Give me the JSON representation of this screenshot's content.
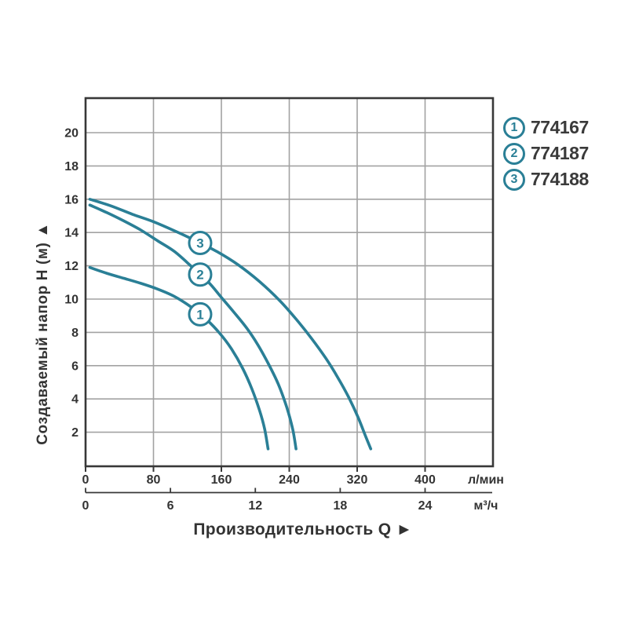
{
  "colors": {
    "curve": "#2a7f96",
    "grid": "#a2a2a2",
    "axis": "#383838",
    "text": "#333333",
    "background": "#ffffff",
    "badge_fill": "#ffffff"
  },
  "legend": {
    "items": [
      {
        "marker": "1",
        "label": "774167"
      },
      {
        "marker": "2",
        "label": "774187"
      },
      {
        "marker": "3",
        "label": "774188"
      }
    ]
  },
  "chart_data": {
    "type": "line",
    "title": "",
    "xlabel": "Производительность Q  ►",
    "ylabel": "Создаваемый напор H (м)  ▲",
    "grid": true,
    "legend_position": "outside-top-right",
    "x_axis_primary": {
      "unit": "л/мин",
      "ticks": [
        0,
        80,
        160,
        240,
        320,
        400
      ],
      "max_visible": 480
    },
    "x_axis_secondary": {
      "unit": "м³/ч",
      "ticks": [
        0,
        6,
        12,
        18,
        24
      ],
      "lmin_per_m3h": 16.6667
    },
    "y_axis": {
      "unit": "м",
      "ticks": [
        2,
        4,
        6,
        8,
        10,
        12,
        14,
        16,
        18,
        20
      ],
      "range_shown": [
        0,
        22
      ]
    },
    "series": [
      {
        "marker": "1",
        "model": "774167",
        "badge_at_lmin": 135,
        "points_lmin_vs_m": [
          [
            5,
            11.9
          ],
          [
            25,
            11.55
          ],
          [
            45,
            11.25
          ],
          [
            65,
            10.95
          ],
          [
            85,
            10.6
          ],
          [
            105,
            10.15
          ],
          [
            125,
            9.5
          ],
          [
            143,
            8.75
          ],
          [
            158,
            7.95
          ],
          [
            172,
            7.0
          ],
          [
            185,
            5.85
          ],
          [
            196,
            4.6
          ],
          [
            205,
            3.3
          ],
          [
            211,
            2.2
          ],
          [
            215,
            1.0
          ]
        ]
      },
      {
        "marker": "2",
        "model": "774187",
        "badge_at_lmin": 135,
        "points_lmin_vs_m": [
          [
            5,
            15.65
          ],
          [
            25,
            15.2
          ],
          [
            45,
            14.7
          ],
          [
            65,
            14.15
          ],
          [
            85,
            13.5
          ],
          [
            105,
            12.85
          ],
          [
            125,
            11.95
          ],
          [
            145,
            11.0
          ],
          [
            160,
            10.1
          ],
          [
            175,
            9.2
          ],
          [
            190,
            8.25
          ],
          [
            203,
            7.25
          ],
          [
            215,
            6.15
          ],
          [
            227,
            4.9
          ],
          [
            237,
            3.5
          ],
          [
            244,
            2.2
          ],
          [
            248,
            1.0
          ]
        ]
      },
      {
        "marker": "3",
        "model": "774188",
        "badge_at_lmin": 135,
        "points_lmin_vs_m": [
          [
            5,
            16.0
          ],
          [
            30,
            15.6
          ],
          [
            55,
            15.1
          ],
          [
            80,
            14.65
          ],
          [
            105,
            14.1
          ],
          [
            130,
            13.5
          ],
          [
            155,
            12.85
          ],
          [
            180,
            12.05
          ],
          [
            205,
            11.05
          ],
          [
            228,
            9.95
          ],
          [
            248,
            8.8
          ],
          [
            266,
            7.65
          ],
          [
            283,
            6.45
          ],
          [
            297,
            5.3
          ],
          [
            310,
            4.1
          ],
          [
            321,
            2.9
          ],
          [
            330,
            1.75
          ],
          [
            336,
            1.0
          ]
        ]
      }
    ]
  }
}
